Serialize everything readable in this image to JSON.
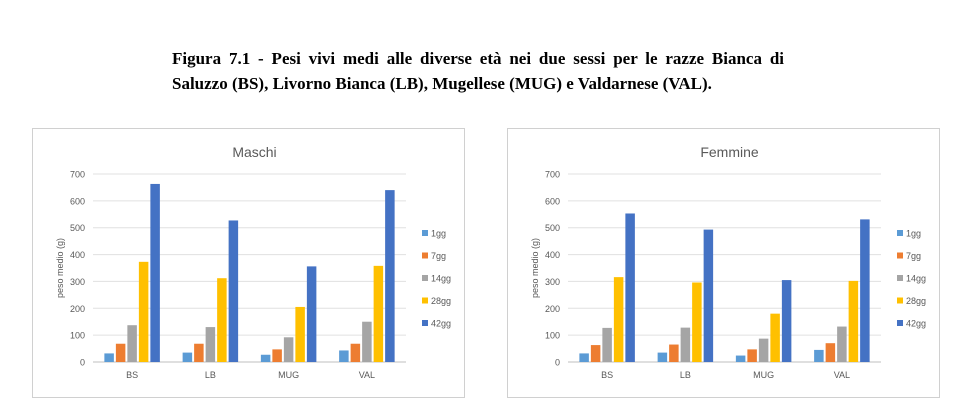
{
  "caption": "Figura 7.1 - Pesi vivi medi alle diverse età nei due sessi per le razze Bianca di Saluzzo (BS), Livorno Bianca (LB), Mugellese (MUG) e Valdarnese (VAL).",
  "chart_data": [
    {
      "type": "bar",
      "title": "Maschi",
      "xlabel": "",
      "ylabel": "peso medio (g)",
      "ylim": [
        0,
        700
      ],
      "yticks": [
        "0",
        "100",
        "200",
        "300",
        "400",
        "500",
        "600",
        "700"
      ],
      "categories": [
        "BS",
        "LB",
        "MUG",
        "VAL"
      ],
      "grid": true,
      "legend_position": "right",
      "series": [
        {
          "name": "1gg",
          "color": "#5B9BD5",
          "values": [
            32,
            35,
            27,
            43
          ]
        },
        {
          "name": "7gg",
          "color": "#ED7D31",
          "values": [
            68,
            68,
            47,
            68
          ]
        },
        {
          "name": "14gg",
          "color": "#A5A5A5",
          "values": [
            137,
            130,
            92,
            150
          ]
        },
        {
          "name": "28gg",
          "color": "#FFC000",
          "values": [
            373,
            312,
            205,
            358
          ]
        },
        {
          "name": "42gg",
          "color": "#4472C4",
          "values": [
            663,
            527,
            356,
            640
          ]
        }
      ]
    },
    {
      "type": "bar",
      "title": "Femmine",
      "xlabel": "",
      "ylabel": "peso medio (g)",
      "ylim": [
        0,
        700
      ],
      "yticks": [
        "0",
        "100",
        "200",
        "300",
        "400",
        "500",
        "600",
        "700"
      ],
      "categories": [
        "BS",
        "LB",
        "MUG",
        "VAL"
      ],
      "grid": true,
      "legend_position": "right",
      "series": [
        {
          "name": "1gg",
          "color": "#5B9BD5",
          "values": [
            32,
            35,
            24,
            45
          ]
        },
        {
          "name": "7gg",
          "color": "#ED7D31",
          "values": [
            63,
            65,
            47,
            70
          ]
        },
        {
          "name": "14gg",
          "color": "#A5A5A5",
          "values": [
            127,
            128,
            87,
            132
          ]
        },
        {
          "name": "28gg",
          "color": "#FFC000",
          "values": [
            316,
            296,
            180,
            302
          ]
        },
        {
          "name": "42gg",
          "color": "#4472C4",
          "values": [
            553,
            493,
            305,
            531
          ]
        }
      ]
    }
  ]
}
